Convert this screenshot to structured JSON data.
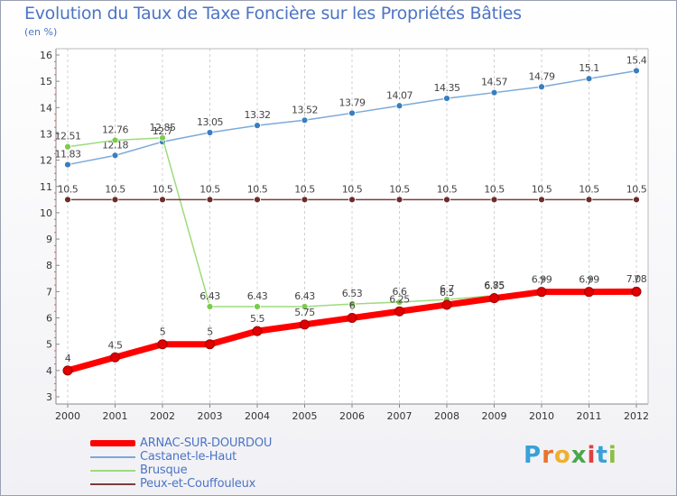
{
  "header": {
    "title": "Evolution du Taux de Taxe Foncière sur les Propriétés Bâties",
    "unit": "(en %)"
  },
  "logo": {
    "text": "Proxiti",
    "colors": [
      "#3aa0d8",
      "#e8742c",
      "#f0b02c",
      "#4aa84a",
      "#e04040",
      "#3aa0d8",
      "#8ac040"
    ]
  },
  "chart_data": {
    "type": "line",
    "title": "Evolution du Taux de Taxe Foncière sur les Propriétés Bâties",
    "ylabel": "(en %)",
    "xlabel": "",
    "ylim": [
      3,
      16
    ],
    "yticks": [
      3,
      4,
      5,
      6,
      7,
      8,
      9,
      10,
      11,
      12,
      13,
      14,
      15,
      16
    ],
    "x": [
      "2000",
      "2001",
      "2002",
      "2003",
      "2004",
      "2005",
      "2006",
      "2007",
      "2008",
      "2009",
      "2010",
      "2011",
      "2012"
    ],
    "grid": "vertical dashed",
    "legend_position": "bottom-left",
    "series": [
      {
        "name": "Castanet-le-Haut",
        "color": "#7aaad8",
        "marker": "#3a7ec0",
        "values": [
          11.83,
          12.18,
          12.7,
          13.05,
          13.32,
          13.52,
          13.79,
          14.07,
          14.35,
          14.57,
          14.79,
          15.1,
          15.4
        ],
        "labels": [
          "11.83",
          "12.18",
          "12.7",
          "13.05",
          "13.32",
          "13.52",
          "13.79",
          "14.07",
          "14.35",
          "14.57",
          "14.79",
          "15.1",
          "15.4"
        ]
      },
      {
        "name": "Brusque",
        "color": "#9cdc7c",
        "marker": "#7ccc4c",
        "values": [
          12.51,
          12.76,
          12.85,
          6.43,
          6.43,
          6.43,
          6.53,
          6.6,
          6.7,
          6.85,
          7,
          7,
          7.08
        ],
        "labels": [
          "12.51",
          "12.76",
          "12.85",
          "6.43",
          "6.43",
          "6.43",
          "6.53",
          "6.6",
          "6.7",
          "6.85",
          "7",
          "7",
          "7.08"
        ]
      },
      {
        "name": "Peux-et-Couffouleux",
        "color": "#7c3c3c",
        "marker": "#6c2c2c",
        "values": [
          10.5,
          10.5,
          10.5,
          10.5,
          10.5,
          10.5,
          10.5,
          10.5,
          10.5,
          10.5,
          10.5,
          10.5,
          10.5
        ],
        "labels": [
          "10.5",
          "10.5",
          "10.5",
          "10.5",
          "10.5",
          "10.5",
          "10.5",
          "10.5",
          "10.5",
          "10.5",
          "10.5",
          "10.5",
          "10.5"
        ]
      },
      {
        "name": "ARNAC-SUR-DOURDOU",
        "color": "#ff0000",
        "marker": "#e00000",
        "values": [
          4,
          4.5,
          5,
          5,
          5.5,
          5.75,
          6,
          6.25,
          6.5,
          6.75,
          6.99,
          6.99,
          7
        ],
        "labels": [
          "4",
          "4.5",
          "5",
          "5",
          "5.5",
          "5.75",
          "6",
          "6.25",
          "6.5",
          "6.75",
          "6.99",
          "6.99",
          "7"
        ]
      }
    ],
    "legend": [
      "ARNAC-SUR-DOURDOU",
      "Castanet-le-Haut",
      "Brusque",
      "Peux-et-Couffouleux"
    ]
  }
}
